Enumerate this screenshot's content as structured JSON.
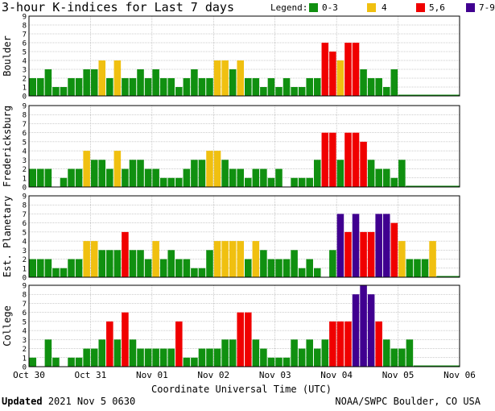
{
  "header": {
    "title": "3-hour K-indices for Last 7 days",
    "legend_label": "Legend:",
    "legend": [
      {
        "label": "0-3",
        "color": "#109010"
      },
      {
        "label": "4",
        "color": "#f0c010"
      },
      {
        "label": "5,6",
        "color": "#f00000"
      },
      {
        "label": "7-9",
        "color": "#400090"
      }
    ]
  },
  "footer": {
    "updated_label": "Updated",
    "updated_value": "2021 Nov  5 0630",
    "source": "NOAA/SWPC Boulder, CO USA"
  },
  "chart_data": {
    "type": "bar",
    "xlabel": "Coordinate Universal Time (UTC)",
    "x_ticks": [
      "Oct 30",
      "Oct 31",
      "Nov 01",
      "Nov 02",
      "Nov 03",
      "Nov 04",
      "Nov 05",
      "Nov 06"
    ],
    "ylim": [
      0,
      9
    ],
    "y_ticks": [
      "0",
      "1",
      "2",
      "3",
      "4",
      "5",
      "6",
      "7",
      "8",
      "9"
    ],
    "grid": true,
    "colors": {
      "quiet": "#109010",
      "active": "#f0c010",
      "storm": "#f00000",
      "severe": "#400090"
    },
    "panels": [
      {
        "name": "Boulder",
        "values": [
          2,
          2,
          3,
          1,
          1,
          2,
          2,
          3,
          3,
          4,
          2,
          4,
          2,
          2,
          3,
          2,
          3,
          2,
          2,
          1,
          2,
          3,
          2,
          2,
          4,
          4,
          3,
          4,
          2,
          2,
          1,
          2,
          1,
          2,
          1,
          1,
          2,
          2,
          6,
          5,
          4,
          6,
          6,
          3,
          2,
          2,
          1,
          3
        ]
      },
      {
        "name": "Fredericksburg",
        "values": [
          2,
          2,
          2,
          0,
          1,
          2,
          2,
          4,
          3,
          3,
          2,
          4,
          2,
          3,
          3,
          2,
          2,
          1,
          1,
          1,
          2,
          3,
          3,
          4,
          4,
          3,
          2,
          2,
          1,
          2,
          2,
          1,
          2,
          0,
          1,
          1,
          1,
          3,
          6,
          6,
          3,
          6,
          6,
          5,
          3,
          2,
          2,
          1,
          3
        ]
      },
      {
        "name": "Est. Planetary",
        "values": [
          2,
          2,
          2,
          1,
          1,
          2,
          2,
          4,
          4,
          3,
          3,
          3,
          5,
          3,
          3,
          2,
          4,
          2,
          3,
          2,
          2,
          1,
          1,
          3,
          4,
          4,
          4,
          4,
          2,
          4,
          3,
          2,
          2,
          2,
          3,
          1,
          2,
          1,
          0,
          3,
          7,
          5,
          7,
          5,
          5,
          7,
          7,
          6,
          4,
          2,
          2,
          2,
          4
        ]
      },
      {
        "name": "College",
        "values": [
          1,
          0,
          3,
          1,
          0,
          1,
          1,
          2,
          2,
          3,
          5,
          3,
          6,
          3,
          2,
          2,
          2,
          2,
          2,
          5,
          1,
          1,
          2,
          2,
          2,
          3,
          3,
          6,
          6,
          3,
          2,
          1,
          1,
          1,
          3,
          2,
          3,
          2,
          3,
          5,
          5,
          5,
          8,
          9,
          8,
          5,
          3,
          2,
          2,
          3
        ]
      }
    ]
  }
}
